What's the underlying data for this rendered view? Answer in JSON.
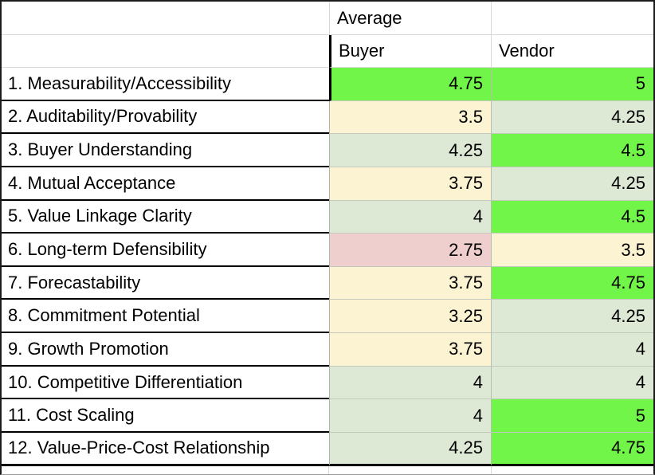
{
  "table": {
    "header": {
      "group_label": "Average",
      "buyer_label": "Buyer",
      "vendor_label": "Vendor"
    },
    "colors": {
      "green": "#70f548",
      "sage": "#dde8d5",
      "cream": "#fbf3d1",
      "pink": "#eecfcd"
    },
    "rows": [
      {
        "label": "1. Measurability/Accessibility",
        "buyer": "4.75",
        "buyer_color": "green",
        "vendor": "5",
        "vendor_color": "green"
      },
      {
        "label": "2. Auditability/Provability",
        "buyer": "3.5",
        "buyer_color": "cream",
        "vendor": "4.25",
        "vendor_color": "sage"
      },
      {
        "label": "3. Buyer Understanding",
        "buyer": "4.25",
        "buyer_color": "sage",
        "vendor": "4.5",
        "vendor_color": "green"
      },
      {
        "label": "4. Mutual Acceptance",
        "buyer": "3.75",
        "buyer_color": "cream",
        "vendor": "4.25",
        "vendor_color": "sage"
      },
      {
        "label": "5. Value Linkage Clarity",
        "buyer": "4",
        "buyer_color": "sage",
        "vendor": "4.5",
        "vendor_color": "green"
      },
      {
        "label": "6. Long-term Defensibility",
        "buyer": "2.75",
        "buyer_color": "pink",
        "vendor": "3.5",
        "vendor_color": "cream"
      },
      {
        "label": "7. Forecastability",
        "buyer": "3.75",
        "buyer_color": "cream",
        "vendor": "4.75",
        "vendor_color": "green"
      },
      {
        "label": "8. Commitment Potential",
        "buyer": "3.25",
        "buyer_color": "cream",
        "vendor": "4.25",
        "vendor_color": "sage"
      },
      {
        "label": "9. Growth Promotion",
        "buyer": "3.75",
        "buyer_color": "cream",
        "vendor": "4",
        "vendor_color": "sage"
      },
      {
        "label": "10. Competitive Differentiation",
        "buyer": "4",
        "buyer_color": "sage",
        "vendor": "4",
        "vendor_color": "sage"
      },
      {
        "label": "11. Cost Scaling",
        "buyer": "4",
        "buyer_color": "sage",
        "vendor": "5",
        "vendor_color": "green"
      },
      {
        "label": "12. Value-Price-Cost Relationship",
        "buyer": "4.25",
        "buyer_color": "sage",
        "vendor": "4.75",
        "vendor_color": "green"
      }
    ]
  }
}
